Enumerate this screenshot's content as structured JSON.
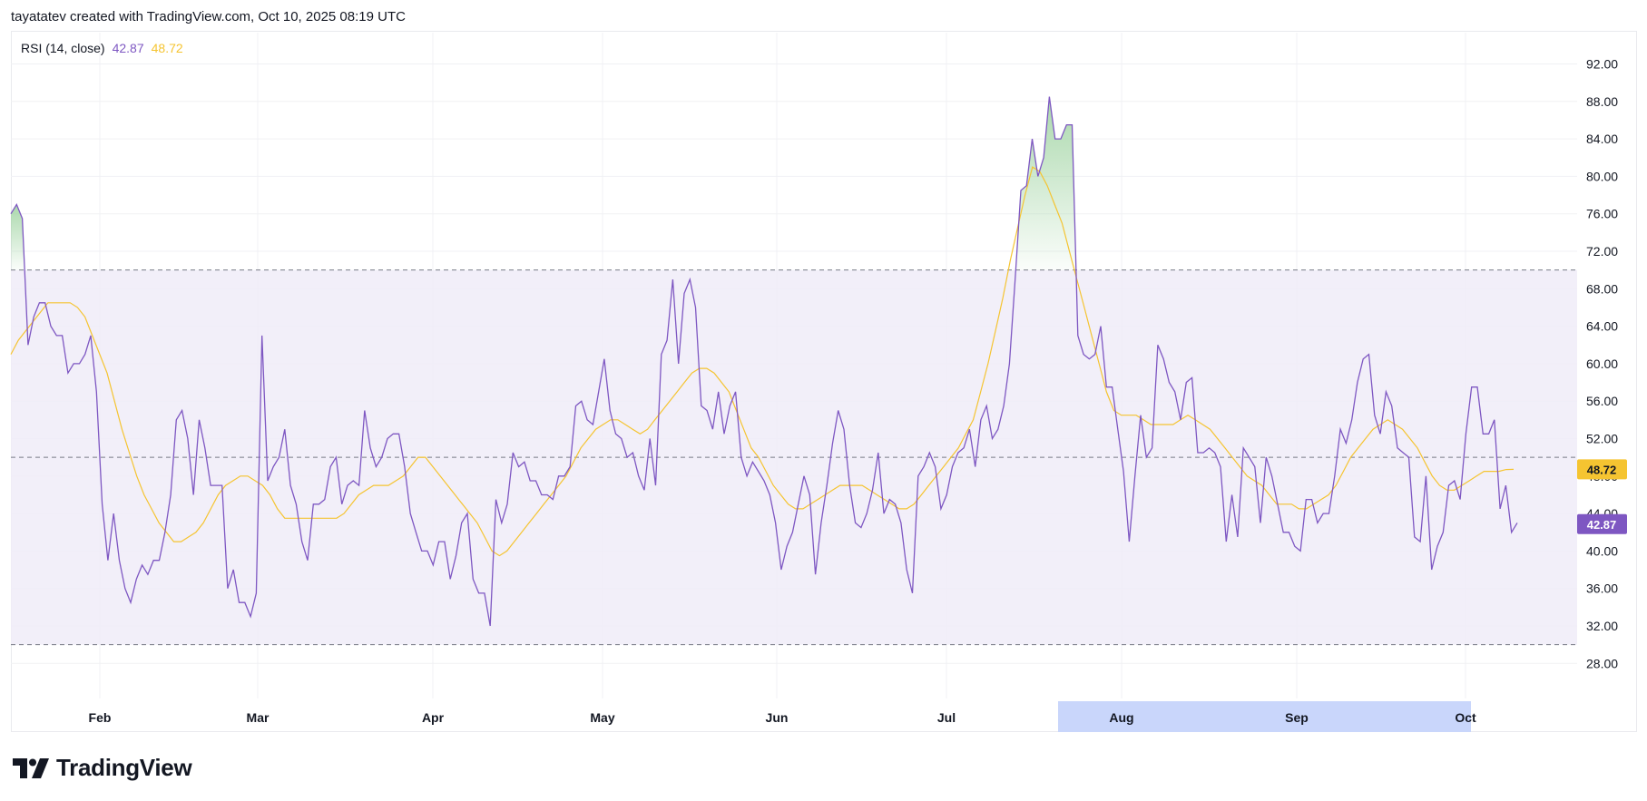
{
  "header": {
    "attribution": "tayatatev created with TradingView.com, Oct 10, 2025 08:19 UTC"
  },
  "legend": {
    "label": "RSI (14, close)",
    "rsi_value": "42.87",
    "ma_value": "48.72"
  },
  "brand": {
    "name": "TradingView"
  },
  "colors": {
    "rsi": "#7e57c2",
    "ma": "#f5c431",
    "band_fill": "#f0ecf8",
    "overbought_fill": "#a5d6a7",
    "x_highlight": "#c9d6fb"
  },
  "chart_data": {
    "type": "line",
    "title": "RSI (14, close)",
    "ylim": [
      26,
      95
    ],
    "y_ticks": [
      "92.00",
      "88.00",
      "84.00",
      "80.00",
      "76.00",
      "72.00",
      "68.00",
      "64.00",
      "60.00",
      "56.00",
      "52.00",
      "48.00",
      "44.00",
      "40.00",
      "36.00",
      "32.00",
      "28.00"
    ],
    "x_ticks": [
      "Feb",
      "Mar",
      "Apr",
      "May",
      "Jun",
      "Jul",
      "Aug",
      "Sep",
      "Oct"
    ],
    "levels": {
      "upper": 70,
      "middle": 50,
      "lower": 30
    },
    "last_values": {
      "rsi": "42.87",
      "ma": "48.72"
    },
    "series": [
      {
        "name": "RSI",
        "values": [
          76,
          77,
          75.5,
          62,
          65,
          66.5,
          66.5,
          64,
          63,
          63,
          59,
          60,
          60,
          61,
          63,
          57,
          45,
          39,
          44,
          39,
          36,
          34.5,
          37,
          38.5,
          37.5,
          39,
          39,
          42,
          46,
          54,
          55,
          52,
          46,
          54,
          51,
          47,
          47,
          47,
          36,
          38,
          34.5,
          34.5,
          33,
          35.5,
          63,
          47.5,
          49,
          50,
          53,
          47,
          45,
          41,
          39,
          45,
          45,
          45.5,
          49,
          50,
          45,
          47,
          47.5,
          47,
          55,
          51,
          49,
          50,
          52,
          52.5,
          52.5,
          49,
          44,
          42,
          40,
          40,
          38.5,
          41,
          41,
          37,
          39.5,
          43,
          44,
          37,
          35.5,
          35.5,
          32,
          45.5,
          43,
          45,
          50.5,
          49,
          49.5,
          47.5,
          47.5,
          46,
          46,
          45.5,
          48,
          48,
          49,
          55.5,
          56,
          54,
          53.5,
          57,
          60.5,
          55,
          52.5,
          52,
          50,
          50.5,
          48,
          46.5,
          52,
          47,
          61,
          62.5,
          69,
          60,
          67.5,
          69,
          66,
          55.5,
          55,
          53,
          57,
          52.5,
          55.5,
          57,
          50,
          48,
          49.5,
          48.5,
          47.5,
          46,
          43,
          38,
          40.5,
          42,
          45,
          48,
          46,
          37.5,
          43,
          47,
          51.5,
          55,
          53,
          47,
          43,
          42.5,
          44,
          46.5,
          50.5,
          44,
          45.5,
          45,
          43,
          38,
          35.5,
          48,
          49,
          50.5,
          49,
          44.5,
          46,
          49,
          50.5,
          51,
          53,
          49,
          54,
          55.5,
          52,
          53,
          55.5,
          60,
          69,
          78.5,
          79,
          84,
          80,
          82,
          88.5,
          84,
          84,
          85.5,
          85.5,
          63,
          61,
          60.5,
          61,
          64,
          57.5,
          57.5,
          53,
          48.5,
          41,
          48,
          54.5,
          50,
          51,
          62,
          60.5,
          58,
          57,
          54,
          58,
          58.5,
          50.5,
          50.5,
          51,
          50.5,
          49,
          41,
          46,
          41.5,
          51,
          50,
          49,
          43,
          50,
          48,
          45,
          42,
          42,
          40.5,
          40,
          45.5,
          45.5,
          43,
          44,
          44,
          48,
          53,
          51.5,
          54,
          58,
          60.5,
          61,
          54.5,
          52.5,
          57,
          55.5,
          51,
          50.5,
          50,
          41.5,
          41,
          48,
          38,
          40.5,
          42,
          47,
          47.5,
          45.5,
          52.5,
          57.5,
          57.5,
          52.5,
          52.5,
          54,
          44.5,
          47,
          42,
          43
        ]
      },
      {
        "name": "MA",
        "values": [
          61,
          62.5,
          63.5,
          64.5,
          65.5,
          66.5,
          66.5,
          66.5,
          66.5,
          66,
          65,
          63,
          61,
          59,
          56,
          53,
          50.5,
          48,
          46,
          44.5,
          43,
          42,
          41,
          41,
          41.5,
          42,
          43,
          44.5,
          46,
          47,
          47.5,
          48,
          48,
          47.5,
          47,
          46,
          44.5,
          43.5,
          43.5,
          43.5,
          43.5,
          43.5,
          43.5,
          43.5,
          43.5,
          44,
          45,
          46,
          46.5,
          47,
          47,
          47,
          47.5,
          48,
          49,
          50,
          50,
          49,
          48,
          47,
          46,
          45,
          44,
          43,
          41.5,
          40,
          39.5,
          40,
          41,
          42,
          43,
          44,
          45,
          46,
          47,
          48,
          49.5,
          51,
          52,
          53,
          53.5,
          54,
          54,
          53.5,
          53,
          52.5,
          53,
          54,
          55,
          56,
          57,
          58,
          59,
          59.5,
          59.5,
          59,
          58,
          57,
          55,
          53,
          51,
          50,
          48.5,
          47,
          46,
          45,
          44.5,
          44.5,
          45,
          45.5,
          46,
          46.5,
          47,
          47,
          47,
          47,
          46.5,
          46,
          45.5,
          45,
          44.5,
          44.5,
          45,
          46,
          47,
          48,
          49,
          50,
          51,
          52.5,
          54,
          57,
          60,
          63.5,
          67,
          71,
          74.5,
          78,
          81,
          80.5,
          79,
          77,
          75,
          72,
          69,
          66,
          63,
          60,
          57,
          55,
          54.5,
          54.5,
          54.5,
          54,
          53.5,
          53.5,
          53.5,
          53.5,
          54,
          54.5,
          54,
          53.5,
          53,
          52,
          51,
          50,
          49,
          48,
          47.5,
          47,
          46,
          45,
          45,
          45,
          44.5,
          44.5,
          45,
          45.5,
          46,
          47,
          48.5,
          50,
          51,
          52,
          53,
          53.5,
          54,
          53.5,
          53,
          52,
          51,
          49.5,
          48,
          47,
          46.5,
          46.5,
          47,
          47.5,
          48,
          48.5,
          48.5,
          48.5,
          48.7,
          48.72
        ]
      }
    ]
  }
}
